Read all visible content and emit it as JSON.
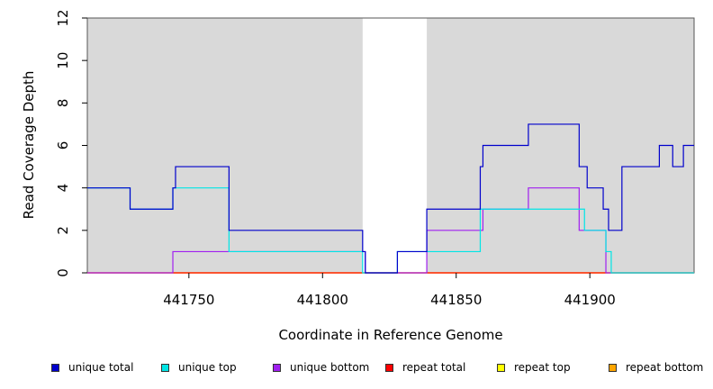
{
  "chart_data": {
    "type": "line",
    "title": "",
    "xlabel": "Coordinate in Reference Genome",
    "ylabel": "Read Coverage Depth",
    "xlim": [
      441712,
      441939
    ],
    "ylim": [
      0,
      12
    ],
    "xticks": [
      441750,
      441800,
      441850,
      441900
    ],
    "yticks": [
      0,
      2,
      4,
      6,
      8,
      10,
      12
    ],
    "shaded_regions": [
      {
        "start": 441712,
        "end": 441815
      },
      {
        "start": 441839,
        "end": 441939
      }
    ],
    "series": [
      {
        "name": "unique total",
        "color": "#0000CC",
        "steps": [
          [
            441712,
            4
          ],
          [
            441728,
            3
          ],
          [
            441744,
            4
          ],
          [
            441745,
            5
          ],
          [
            441765,
            2
          ],
          [
            441815,
            1
          ],
          [
            441816,
            0
          ],
          [
            441828,
            1
          ],
          [
            441839,
            3
          ],
          [
            441859,
            5
          ],
          [
            441860,
            6
          ],
          [
            441877,
            7
          ],
          [
            441896,
            5
          ],
          [
            441899,
            4
          ],
          [
            441905,
            3
          ],
          [
            441907,
            2
          ],
          [
            441912,
            5
          ],
          [
            441926,
            6
          ],
          [
            441931,
            5
          ],
          [
            441935,
            6
          ],
          [
            441939,
            6
          ]
        ]
      },
      {
        "name": "unique top",
        "color": "#00E5E5",
        "steps": [
          [
            441712,
            4
          ],
          [
            441728,
            3
          ],
          [
            441744,
            4
          ],
          [
            441765,
            1
          ],
          [
            441815,
            0
          ],
          [
            441828,
            1
          ],
          [
            441859,
            3
          ],
          [
            441898,
            2
          ],
          [
            441906,
            1
          ],
          [
            441908,
            0
          ],
          [
            441939,
            0
          ]
        ]
      },
      {
        "name": "unique bottom",
        "color": "#A020F0",
        "steps": [
          [
            441712,
            0
          ],
          [
            441744,
            1
          ],
          [
            441816,
            0
          ],
          [
            441839,
            2
          ],
          [
            441860,
            3
          ],
          [
            441877,
            4
          ],
          [
            441896,
            2
          ],
          [
            441906,
            0
          ],
          [
            441939,
            0
          ]
        ]
      },
      {
        "name": "repeat total",
        "color": "#FF0000",
        "steps": [
          [
            441712,
            0
          ],
          [
            441939,
            0
          ]
        ]
      },
      {
        "name": "repeat top",
        "color": "#FFFF00",
        "steps": [
          [
            441712,
            0
          ],
          [
            441939,
            0
          ]
        ]
      },
      {
        "name": "repeat bottom",
        "color": "#FFA500",
        "steps": [
          [
            441712,
            0
          ],
          [
            441939,
            0
          ]
        ]
      }
    ]
  },
  "legend": {
    "items": [
      {
        "label": "unique total",
        "color": "#0000CC"
      },
      {
        "label": "unique top",
        "color": "#00E5E5"
      },
      {
        "label": "unique bottom",
        "color": "#A020F0"
      },
      {
        "label": "repeat total",
        "color": "#FF0000"
      },
      {
        "label": "repeat top",
        "color": "#FFFF00"
      },
      {
        "label": "repeat bottom",
        "color": "#FFA500"
      }
    ]
  }
}
